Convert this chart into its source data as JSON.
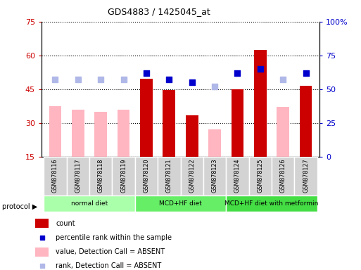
{
  "title": "GDS4883 / 1425045_at",
  "samples": [
    "GSM878116",
    "GSM878117",
    "GSM878118",
    "GSM878119",
    "GSM878120",
    "GSM878121",
    "GSM878122",
    "GSM878123",
    "GSM878124",
    "GSM878125",
    "GSM878126",
    "GSM878127"
  ],
  "count_values": [
    null,
    null,
    null,
    null,
    49.5,
    44.5,
    33.5,
    null,
    45.0,
    62.5,
    null,
    46.5
  ],
  "count_absent": [
    37.5,
    36.0,
    35.0,
    36.0,
    null,
    null,
    null,
    27.0,
    null,
    null,
    37.0,
    null
  ],
  "rank_values": [
    null,
    null,
    null,
    null,
    62.0,
    57.0,
    55.0,
    null,
    62.0,
    65.0,
    null,
    62.0
  ],
  "rank_absent": [
    57.0,
    57.0,
    57.0,
    57.0,
    null,
    null,
    null,
    52.0,
    null,
    null,
    57.0,
    null
  ],
  "protocols": [
    {
      "label": "normal diet",
      "start": 0,
      "end": 4,
      "color": "#aaffaa"
    },
    {
      "label": "MCD+HF diet",
      "start": 4,
      "end": 8,
      "color": "#66ee66"
    },
    {
      "label": "MCD+HF diet with metformin",
      "start": 8,
      "end": 12,
      "color": "#44dd44"
    }
  ],
  "ylim_left": [
    15,
    75
  ],
  "ylim_right": [
    0,
    100
  ],
  "yticks_left": [
    15,
    30,
    45,
    60,
    75
  ],
  "yticks_right": [
    0,
    25,
    50,
    75,
    100
  ],
  "ytick_labels_right": [
    "0",
    "25",
    "50",
    "75",
    "100%"
  ],
  "color_count": "#cc0000",
  "color_rank": "#0000cc",
  "color_absent_bar": "#ffb6c1",
  "color_absent_rank": "#b0b8e8",
  "bar_width": 0.55,
  "dot_size": 40,
  "legend_items": [
    {
      "label": "count",
      "color": "#cc0000",
      "type": "bar"
    },
    {
      "label": "percentile rank within the sample",
      "color": "#0000cc",
      "type": "dot"
    },
    {
      "label": "value, Detection Call = ABSENT",
      "color": "#ffb6c1",
      "type": "bar"
    },
    {
      "label": "rank, Detection Call = ABSENT",
      "color": "#b0b8e8",
      "type": "dot"
    }
  ]
}
